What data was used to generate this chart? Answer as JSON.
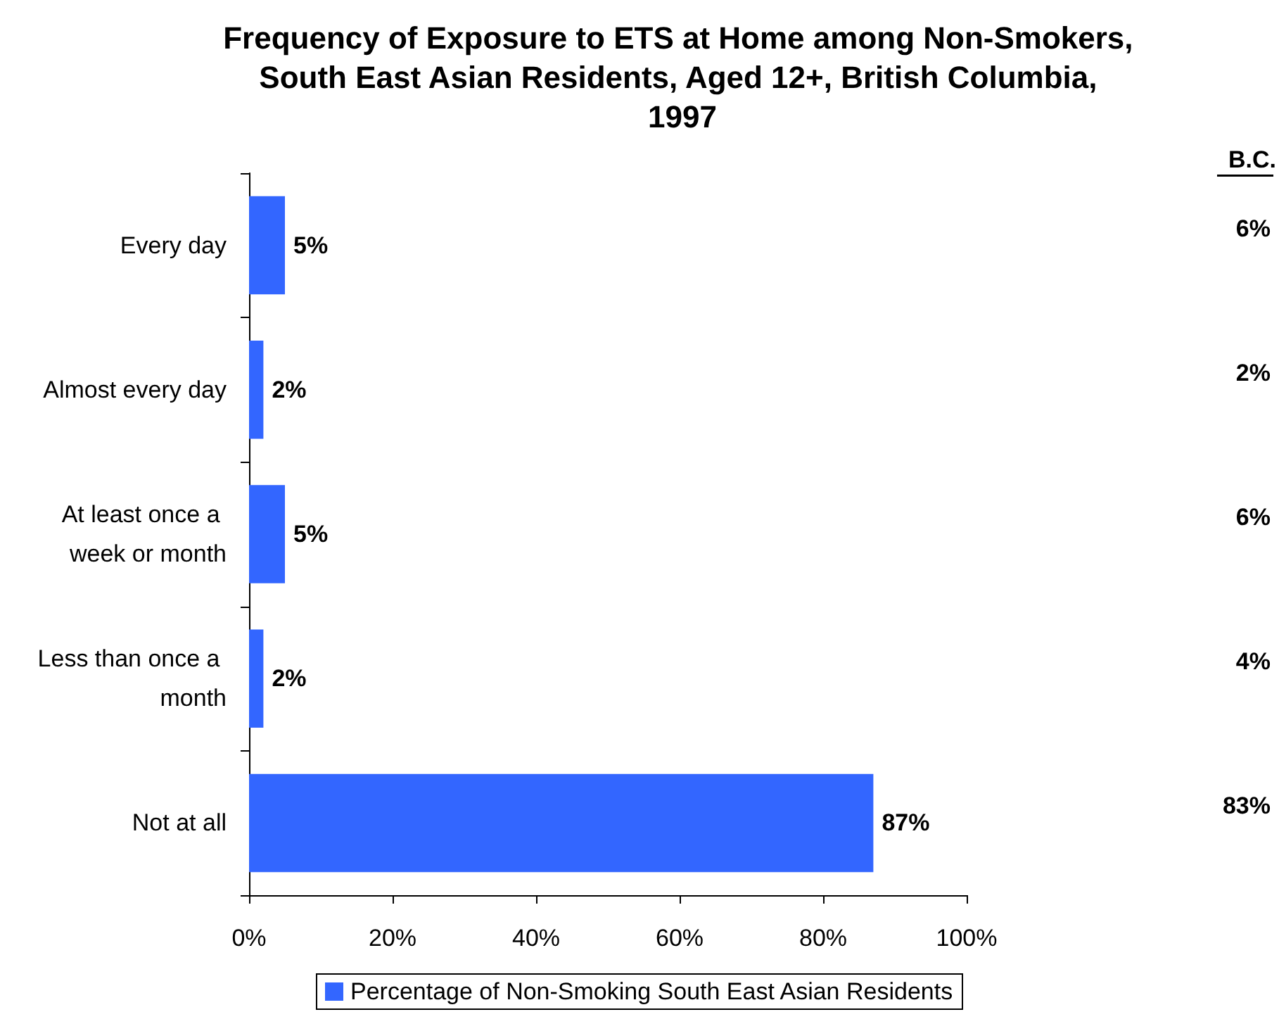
{
  "chart_data": {
    "type": "bar",
    "orientation": "horizontal",
    "title": "Frequency of Exposure to ETS at Home among Non-Smokers, South East Asian Residents, Aged 12+, British Columbia, 1997",
    "categories": [
      "Every day",
      "Almost every day",
      "At least once a week or month",
      "Less than once a month",
      "Not at all"
    ],
    "series": [
      {
        "name": "Percentage of Non-Smoking South East Asian Residents",
        "color": "#3366ff",
        "values": [
          5,
          2,
          5,
          2,
          87
        ],
        "value_labels": [
          "5%",
          "2%",
          "5%",
          "2%",
          "87%"
        ]
      }
    ],
    "xlim": [
      0,
      100
    ],
    "xticks": [
      {
        "value": 0,
        "label": "0%"
      },
      {
        "value": 20,
        "label": "20%"
      },
      {
        "value": 40,
        "label": "40%"
      },
      {
        "value": 60,
        "label": "60%"
      },
      {
        "value": 80,
        "label": "80%"
      },
      {
        "value": 100,
        "label": "100%"
      }
    ],
    "annotations": [
      "B.C.",
      "6%",
      "2%",
      "6%",
      "4%",
      "83%"
    ],
    "grid": false,
    "legend": "bottom"
  }
}
